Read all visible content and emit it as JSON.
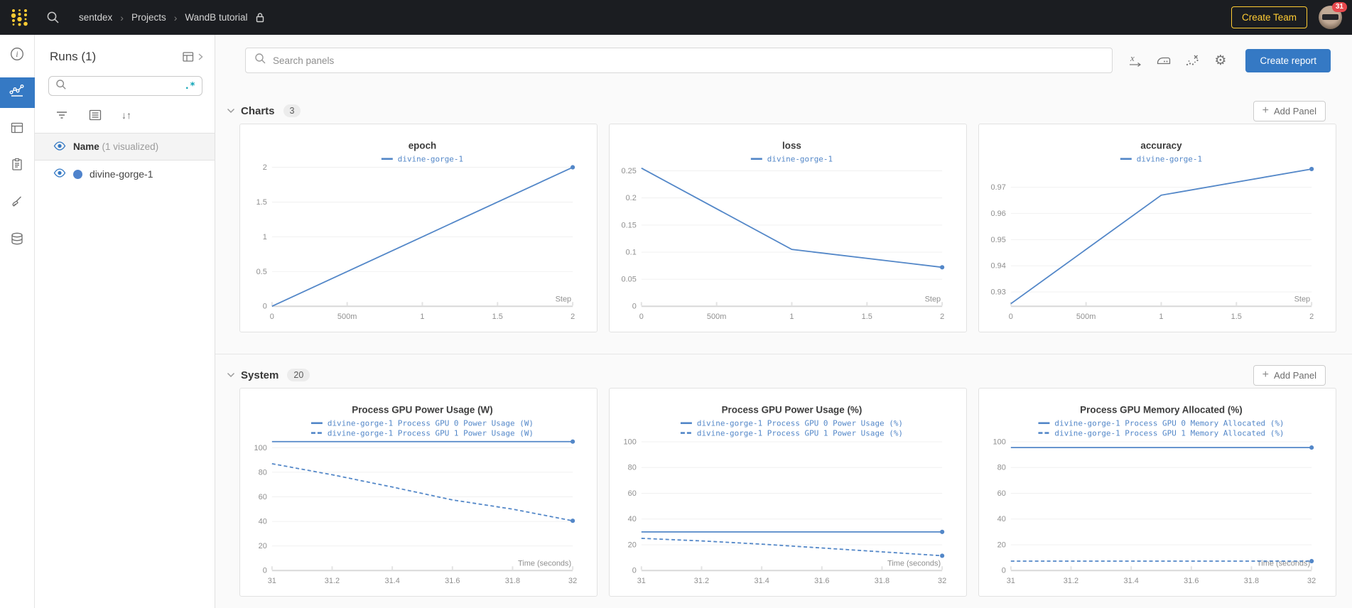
{
  "colors": {
    "topbar_bg": "#1b1d21",
    "gold": "#ffcc33",
    "accent_blue": "#3579c4",
    "chart_line_blue": "#5387c8",
    "badge_red": "#e5484d"
  },
  "glyphs": {
    "breadcrumb_separator": "›",
    "plus": "+",
    "sort": "↓↑",
    "gear": "⚙",
    "regex": ".*"
  },
  "topbar": {
    "breadcrumb": [
      {
        "label": "sentdex"
      },
      {
        "label": "Projects"
      },
      {
        "label": "WandB tutorial"
      }
    ],
    "create_team_label": "Create Team",
    "notification_count": "31"
  },
  "runs_panel": {
    "title": "Runs (1)",
    "search_value": "",
    "name_column": {
      "label": "Name",
      "annotation": "(1 visualized)"
    },
    "runs": [
      {
        "name": "divine-gorge-1"
      }
    ]
  },
  "main_header": {
    "search_placeholder": "Search panels",
    "create_report_label": "Create report"
  },
  "sections": [
    {
      "title": "Charts",
      "count": "3",
      "add_panel_label": "Add Panel"
    },
    {
      "title": "System",
      "count": "20",
      "add_panel_label": "Add Panel"
    }
  ],
  "chart_data": [
    {
      "type": "line",
      "title": "epoch",
      "xlabel": "Step",
      "xlim": [
        0,
        2
      ],
      "ylim": [
        0,
        2.05
      ],
      "xticks": [
        {
          "v": 0,
          "l": "0"
        },
        {
          "v": 0.5,
          "l": "500m"
        },
        {
          "v": 1,
          "l": "1"
        },
        {
          "v": 1.5,
          "l": "1.5"
        },
        {
          "v": 2,
          "l": "2"
        }
      ],
      "yticks": [
        {
          "v": 0,
          "l": "0"
        },
        {
          "v": 0.5,
          "l": "0.5"
        },
        {
          "v": 1,
          "l": "1"
        },
        {
          "v": 1.5,
          "l": "1.5"
        },
        {
          "v": 2,
          "l": "2"
        }
      ],
      "series": [
        {
          "name": "divine-gorge-1",
          "dashed": false,
          "x": [
            0,
            1,
            2
          ],
          "y": [
            0,
            1,
            2
          ]
        }
      ]
    },
    {
      "type": "line",
      "title": "loss",
      "xlabel": "Step",
      "xlim": [
        0,
        2
      ],
      "ylim": [
        0,
        0.263
      ],
      "xticks": [
        {
          "v": 0,
          "l": "0"
        },
        {
          "v": 0.5,
          "l": "500m"
        },
        {
          "v": 1,
          "l": "1"
        },
        {
          "v": 1.5,
          "l": "1.5"
        },
        {
          "v": 2,
          "l": "2"
        }
      ],
      "yticks": [
        {
          "v": 0,
          "l": "0"
        },
        {
          "v": 0.05,
          "l": "0.05"
        },
        {
          "v": 0.1,
          "l": "0.1"
        },
        {
          "v": 0.15,
          "l": "0.15"
        },
        {
          "v": 0.2,
          "l": "0.2"
        },
        {
          "v": 0.25,
          "l": "0.25"
        }
      ],
      "series": [
        {
          "name": "divine-gorge-1",
          "dashed": false,
          "x": [
            0,
            1,
            2
          ],
          "y": [
            0.255,
            0.105,
            0.072
          ]
        }
      ]
    },
    {
      "type": "line",
      "title": "accuracy",
      "xlabel": "Step",
      "xlim": [
        0,
        2
      ],
      "ylim": [
        0.9245,
        0.979
      ],
      "xticks": [
        {
          "v": 0,
          "l": "0"
        },
        {
          "v": 0.5,
          "l": "500m"
        },
        {
          "v": 1,
          "l": "1"
        },
        {
          "v": 1.5,
          "l": "1.5"
        },
        {
          "v": 2,
          "l": "2"
        }
      ],
      "yticks": [
        {
          "v": 0.93,
          "l": "0.93"
        },
        {
          "v": 0.94,
          "l": "0.94"
        },
        {
          "v": 0.95,
          "l": "0.95"
        },
        {
          "v": 0.96,
          "l": "0.96"
        },
        {
          "v": 0.97,
          "l": "0.97"
        }
      ],
      "series": [
        {
          "name": "divine-gorge-1",
          "dashed": false,
          "x": [
            0,
            1,
            2
          ],
          "y": [
            0.9255,
            0.967,
            0.977
          ]
        }
      ]
    },
    {
      "type": "line",
      "title": "Process GPU Power Usage (W)",
      "xlabel": "Time (seconds)",
      "xlim": [
        31,
        32
      ],
      "ylim": [
        0,
        108
      ],
      "xticks": [
        {
          "v": 31,
          "l": "31"
        },
        {
          "v": 31.2,
          "l": "31.2"
        },
        {
          "v": 31.4,
          "l": "31.4"
        },
        {
          "v": 31.6,
          "l": "31.6"
        },
        {
          "v": 31.8,
          "l": "31.8"
        },
        {
          "v": 32,
          "l": "32"
        }
      ],
      "yticks": [
        {
          "v": 0,
          "l": "0"
        },
        {
          "v": 20,
          "l": "20"
        },
        {
          "v": 40,
          "l": "40"
        },
        {
          "v": 60,
          "l": "60"
        },
        {
          "v": 80,
          "l": "80"
        },
        {
          "v": 100,
          "l": "100"
        }
      ],
      "series": [
        {
          "name": "divine-gorge-1 Process GPU 0 Power Usage (W)",
          "dashed": false,
          "x": [
            31,
            32
          ],
          "y": [
            105,
            105
          ]
        },
        {
          "name": "divine-gorge-1 Process GPU 1 Power Usage (W)",
          "dashed": true,
          "x": [
            31,
            31.2,
            31.4,
            31.6,
            31.8,
            32
          ],
          "y": [
            87,
            78,
            68,
            57.5,
            50,
            40.5
          ]
        }
      ]
    },
    {
      "type": "line",
      "title": "Process GPU Power Usage (%)",
      "xlabel": "Time (seconds)",
      "xlim": [
        31,
        32
      ],
      "ylim": [
        0,
        103
      ],
      "xticks": [
        {
          "v": 31,
          "l": "31"
        },
        {
          "v": 31.2,
          "l": "31.2"
        },
        {
          "v": 31.4,
          "l": "31.4"
        },
        {
          "v": 31.6,
          "l": "31.6"
        },
        {
          "v": 31.8,
          "l": "31.8"
        },
        {
          "v": 32,
          "l": "32"
        }
      ],
      "yticks": [
        {
          "v": 0,
          "l": "0"
        },
        {
          "v": 20,
          "l": "20"
        },
        {
          "v": 40,
          "l": "40"
        },
        {
          "v": 60,
          "l": "60"
        },
        {
          "v": 80,
          "l": "80"
        },
        {
          "v": 100,
          "l": "100"
        }
      ],
      "series": [
        {
          "name": "divine-gorge-1 Process GPU 0 Power Usage (%)",
          "dashed": false,
          "x": [
            31,
            32
          ],
          "y": [
            30,
            30
          ]
        },
        {
          "name": "divine-gorge-1 Process GPU 1 Power Usage (%)",
          "dashed": true,
          "x": [
            31,
            31.2,
            31.4,
            31.6,
            31.8,
            32
          ],
          "y": [
            25,
            23,
            20.5,
            17.5,
            14.5,
            11.5
          ]
        }
      ]
    },
    {
      "type": "line",
      "title": "Process GPU Memory Allocated (%)",
      "xlabel": "Time (seconds)",
      "xlim": [
        31,
        32
      ],
      "ylim": [
        0,
        103
      ],
      "xticks": [
        {
          "v": 31,
          "l": "31"
        },
        {
          "v": 31.2,
          "l": "31.2"
        },
        {
          "v": 31.4,
          "l": "31.4"
        },
        {
          "v": 31.6,
          "l": "31.6"
        },
        {
          "v": 31.8,
          "l": "31.8"
        },
        {
          "v": 32,
          "l": "32"
        }
      ],
      "yticks": [
        {
          "v": 0,
          "l": "0"
        },
        {
          "v": 20,
          "l": "20"
        },
        {
          "v": 40,
          "l": "40"
        },
        {
          "v": 60,
          "l": "60"
        },
        {
          "v": 80,
          "l": "80"
        },
        {
          "v": 100,
          "l": "100"
        }
      ],
      "series": [
        {
          "name": "divine-gorge-1 Process GPU 0 Memory Allocated (%)",
          "dashed": false,
          "x": [
            31,
            32
          ],
          "y": [
            95.5,
            95.5
          ]
        },
        {
          "name": "divine-gorge-1 Process GPU 1 Memory Allocated (%)",
          "dashed": true,
          "x": [
            31,
            32
          ],
          "y": [
            7.3,
            7.3
          ]
        }
      ]
    }
  ]
}
